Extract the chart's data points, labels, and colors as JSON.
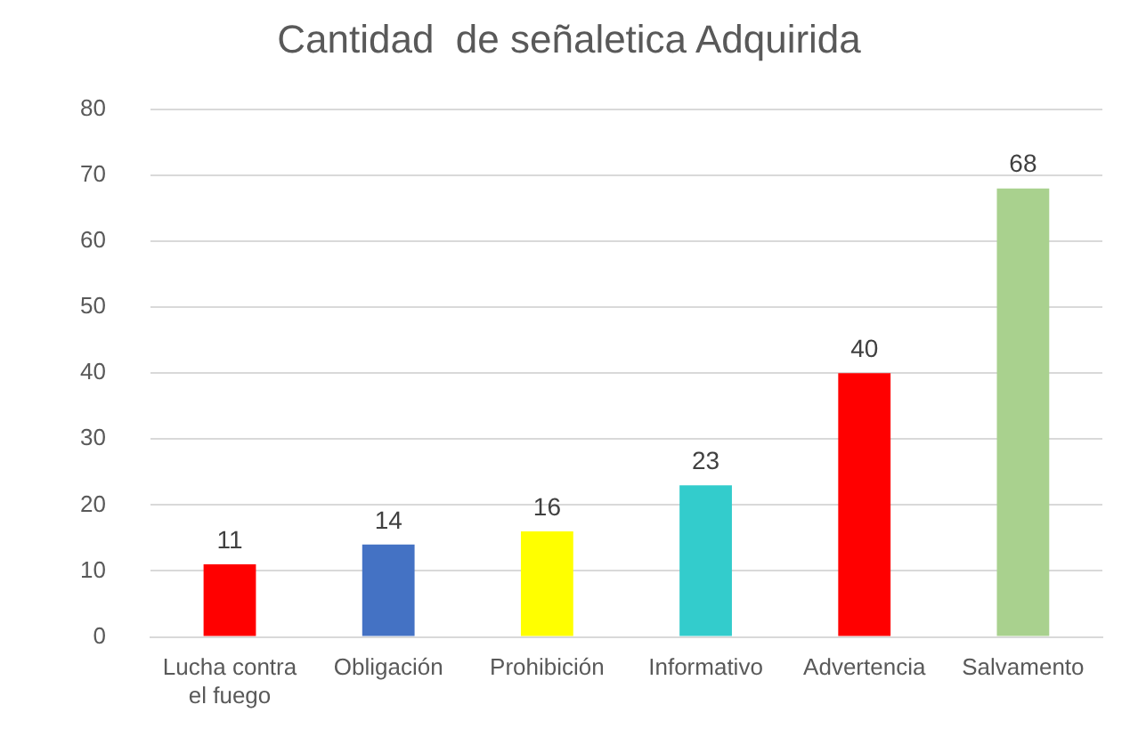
{
  "chart_data": {
    "type": "bar",
    "title": "Cantidad  de señaletica Adquirida",
    "categories": [
      "Lucha contra el fuego",
      "Obligación",
      "Prohibición",
      "Informativo",
      "Advertencia",
      "Salvamento"
    ],
    "values": [
      11,
      14,
      16,
      23,
      40,
      68
    ],
    "colors": [
      "#ff0000",
      "#4472c4",
      "#ffff00",
      "#33cccc",
      "#ff0000",
      "#a9d18e"
    ],
    "ylim": [
      0,
      80
    ],
    "yticks": [
      0,
      10,
      20,
      30,
      40,
      50,
      60,
      70,
      80
    ],
    "grid": "y",
    "data_labels": true
  }
}
